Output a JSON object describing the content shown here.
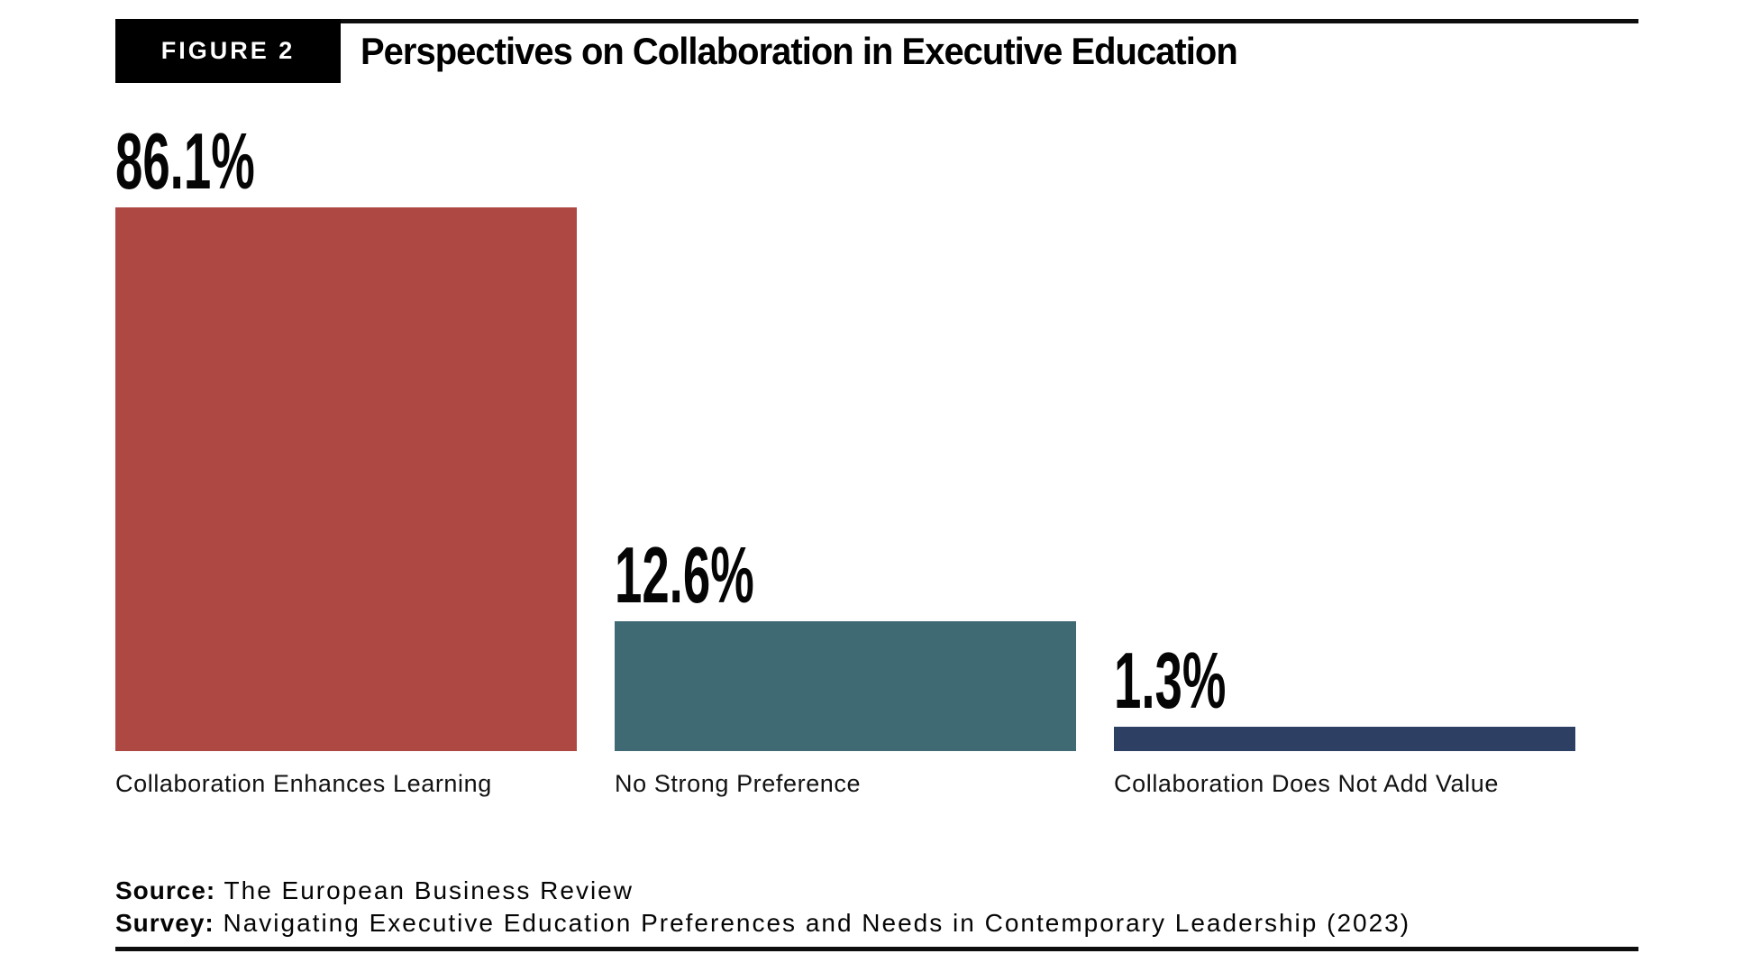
{
  "figure": {
    "tag": "FIGURE 2",
    "title": "Perspectives on Collaboration in Executive Education"
  },
  "chart_data": {
    "type": "bar",
    "title": "Perspectives on Collaboration in Executive Education",
    "categories": [
      "Collaboration Enhances Learning",
      "No Strong Preference",
      "Collaboration Does Not Add Value"
    ],
    "values": [
      86.1,
      12.6,
      1.3
    ],
    "value_labels": [
      "86.1%",
      "12.6%",
      "1.3%"
    ],
    "colors": [
      "#AD4843",
      "#3F6A74",
      "#2D3F63"
    ],
    "xlabel": "",
    "ylabel": "",
    "ylim": [
      0,
      100
    ],
    "grid": false,
    "legend": "none",
    "orientation": "vertical",
    "value_label_position": "above-bar"
  },
  "footer": {
    "source_label": "Source:",
    "source_text": "The European Business Review",
    "survey_label": "Survey:",
    "survey_text": "Navigating Executive Education Preferences and Needs in Contemporary Leadership (2023)"
  }
}
